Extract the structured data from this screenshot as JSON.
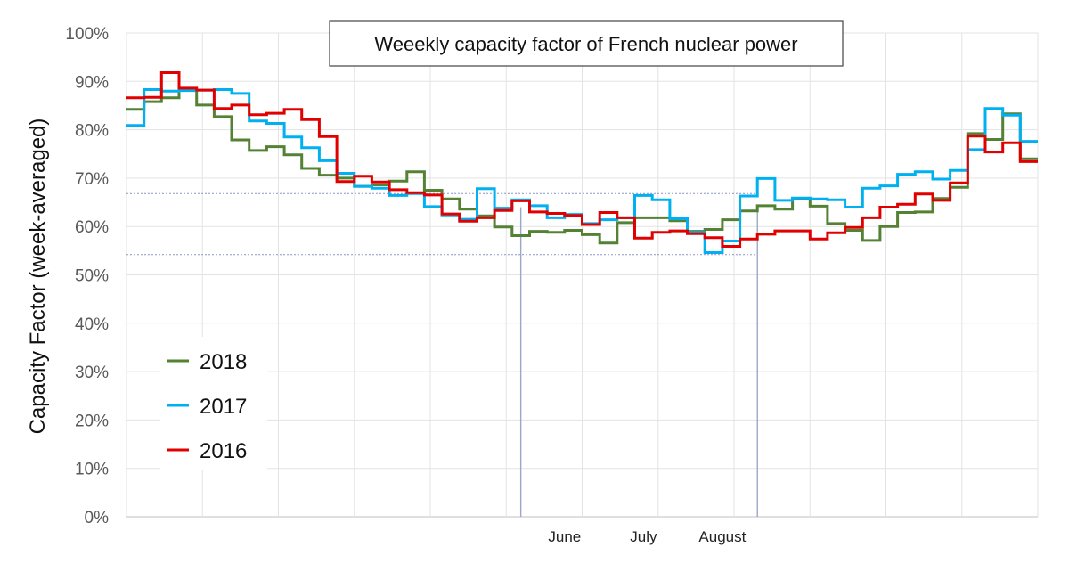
{
  "chart_data": {
    "type": "line",
    "step": true,
    "title": "Weeekly capacity factor of French nuclear power",
    "xlabel": "",
    "ylabel": "Capacity Factor (week-averaged)",
    "ylim": [
      0,
      100
    ],
    "y_ticks": [
      "0%",
      "10%",
      "20%",
      "30%",
      "40%",
      "50%",
      "60%",
      "70%",
      "80%",
      "90%",
      "100%"
    ],
    "week_range": [
      1,
      53
    ],
    "x_month_labels": [
      {
        "label": "June",
        "week": 26
      },
      {
        "label": "July",
        "week": 30.5
      },
      {
        "label": "August",
        "week": 35
      }
    ],
    "reference_lines": {
      "horizontal_values": [
        66.8,
        54.2
      ],
      "vertical_weeks": [
        23.5,
        37
      ]
    },
    "legend": [
      "2018",
      "2017",
      "2016"
    ],
    "series": [
      {
        "name": "2018",
        "color": "#548235",
        "values": [
          84.2,
          85.8,
          86.6,
          88.2,
          85.1,
          82.7,
          77.9,
          75.7,
          76.5,
          74.8,
          72.0,
          70.6,
          70.0,
          68.3,
          68.6,
          69.4,
          71.3,
          67.5,
          65.7,
          63.6,
          62.2,
          59.9,
          58.1,
          59.0,
          58.8,
          59.2,
          58.3,
          56.6,
          60.8,
          61.8,
          61.8,
          61.2,
          59.0,
          59.4,
          61.4,
          63.2,
          64.3,
          63.6,
          65.8,
          64.2,
          60.6,
          59.2,
          57.1,
          60.0,
          62.9,
          63.0,
          65.8,
          68.1,
          79.2,
          78.0,
          83.3,
          74.0
        ]
      },
      {
        "name": "2017",
        "color": "#00B0F0",
        "values": [
          80.9,
          88.3,
          88.0,
          88.1,
          88.2,
          88.3,
          87.5,
          81.8,
          81.3,
          78.5,
          76.3,
          73.6,
          71.0,
          68.3,
          67.9,
          66.4,
          66.8,
          64.1,
          62.4,
          61.5,
          67.8,
          63.8,
          65.5,
          64.3,
          61.8,
          62.5,
          60.6,
          61.4,
          61.8,
          66.4,
          65.5,
          61.6,
          58.8,
          54.6,
          57.0,
          66.3,
          69.9,
          65.4,
          65.9,
          65.7,
          65.5,
          64.0,
          67.9,
          68.4,
          70.8,
          71.3,
          69.8,
          71.6,
          75.9,
          84.4,
          83.0,
          77.6
        ]
      },
      {
        "name": "2016",
        "color": "#E00000",
        "values": [
          86.6,
          86.7,
          91.8,
          88.6,
          88.2,
          84.4,
          85.1,
          83.1,
          83.4,
          84.2,
          82.1,
          78.6,
          69.3,
          70.4,
          69.2,
          67.6,
          67.0,
          66.5,
          62.6,
          61.1,
          61.8,
          63.3,
          65.3,
          63.0,
          62.7,
          62.3,
          60.4,
          62.9,
          61.8,
          57.6,
          58.8,
          59.1,
          58.5,
          57.7,
          55.9,
          57.4,
          58.4,
          59.1,
          59.1,
          57.4,
          58.7,
          59.8,
          61.8,
          64.0,
          64.6,
          66.7,
          65.4,
          69.0,
          78.7,
          75.4,
          77.3,
          73.4
        ]
      }
    ]
  }
}
